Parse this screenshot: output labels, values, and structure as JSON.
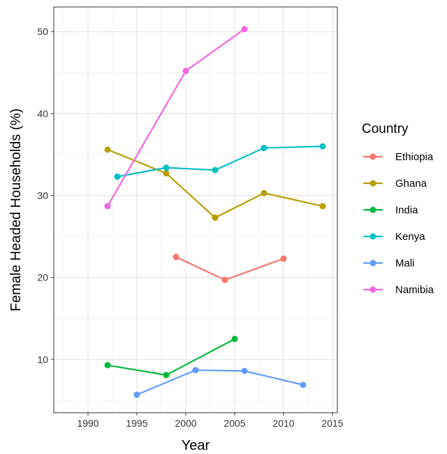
{
  "chart_data": {
    "type": "line",
    "xlabel": "Year",
    "ylabel": "Female Headed Households (%)",
    "xlim": [
      1986.5,
      2015.5
    ],
    "ylim": [
      3.5,
      53
    ],
    "x_ticks": [
      1990,
      1995,
      2000,
      2005,
      2010,
      2015
    ],
    "x_minor_ticks": [
      1987.5,
      1992.5,
      1997.5,
      2002.5,
      2007.5,
      2012.5
    ],
    "y_ticks": [
      10,
      20,
      30,
      40,
      50
    ],
    "y_minor_ticks": [
      5,
      15,
      25,
      35,
      45
    ],
    "grid": true,
    "legend": {
      "title": "Country",
      "position": "right"
    },
    "series": [
      {
        "name": "Ethiopia",
        "color": "#F8766D",
        "points": [
          [
            1999,
            22.5
          ],
          [
            2004,
            19.7
          ],
          [
            2010,
            22.3
          ]
        ]
      },
      {
        "name": "Ghana",
        "color": "#B79F00",
        "points": [
          [
            1992,
            35.6
          ],
          [
            1998,
            32.7
          ],
          [
            2003,
            27.3
          ],
          [
            2008,
            30.3
          ],
          [
            2014,
            28.7
          ]
        ]
      },
      {
        "name": "India",
        "color": "#00BA38",
        "points": [
          [
            1992,
            9.3
          ],
          [
            1998,
            8.1
          ],
          [
            2005,
            12.5
          ]
        ]
      },
      {
        "name": "Kenya",
        "color": "#00BFC4",
        "points": [
          [
            1993,
            32.3
          ],
          [
            1998,
            33.4
          ],
          [
            2003,
            33.1
          ],
          [
            2008,
            35.8
          ],
          [
            2014,
            36.0
          ]
        ]
      },
      {
        "name": "Mali",
        "color": "#619CFF",
        "points": [
          [
            1995,
            5.7
          ],
          [
            2001,
            8.7
          ],
          [
            2006,
            8.6
          ],
          [
            2012,
            6.9
          ]
        ]
      },
      {
        "name": "Namibia",
        "color": "#F564E3",
        "points": [
          [
            1992,
            28.7
          ],
          [
            2000,
            45.2
          ],
          [
            2006,
            50.3
          ]
        ]
      }
    ]
  }
}
